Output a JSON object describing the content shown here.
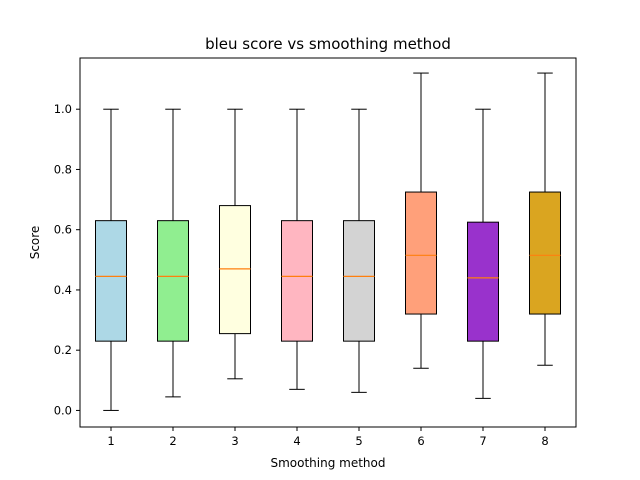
{
  "chart_data": {
    "type": "box",
    "title": "bleu score vs smoothing method",
    "xlabel": "Smoothing method",
    "ylabel": "Score",
    "categories": [
      "1",
      "2",
      "3",
      "4",
      "5",
      "6",
      "7",
      "8"
    ],
    "ylim": [
      -0.055,
      1.17
    ],
    "yticks": [
      0.0,
      0.2,
      0.4,
      0.6,
      0.8,
      1.0
    ],
    "ytick_labels": [
      "0.0",
      "0.2",
      "0.4",
      "0.6",
      "0.8",
      "1.0"
    ],
    "grid": false,
    "legend": "none",
    "median_color": "#ff7f0e",
    "boxes": [
      {
        "category": "1",
        "whisker_low": 0.0,
        "q1": 0.23,
        "median": 0.445,
        "q3": 0.63,
        "whisker_high": 1.0,
        "color": "#add8e6"
      },
      {
        "category": "2",
        "whisker_low": 0.045,
        "q1": 0.23,
        "median": 0.445,
        "q3": 0.63,
        "whisker_high": 1.0,
        "color": "#90ee90"
      },
      {
        "category": "3",
        "whisker_low": 0.105,
        "q1": 0.255,
        "median": 0.47,
        "q3": 0.68,
        "whisker_high": 1.0,
        "color": "#ffffe0"
      },
      {
        "category": "4",
        "whisker_low": 0.07,
        "q1": 0.23,
        "median": 0.445,
        "q3": 0.63,
        "whisker_high": 1.0,
        "color": "#ffb6c1"
      },
      {
        "category": "5",
        "whisker_low": 0.06,
        "q1": 0.23,
        "median": 0.445,
        "q3": 0.63,
        "whisker_high": 1.0,
        "color": "#d3d3d3"
      },
      {
        "category": "6",
        "whisker_low": 0.14,
        "q1": 0.32,
        "median": 0.515,
        "q3": 0.725,
        "whisker_high": 1.12,
        "color": "#ffa07a"
      },
      {
        "category": "7",
        "whisker_low": 0.04,
        "q1": 0.23,
        "median": 0.44,
        "q3": 0.625,
        "whisker_high": 1.0,
        "color": "#9932cc"
      },
      {
        "category": "8",
        "whisker_low": 0.15,
        "q1": 0.32,
        "median": 0.515,
        "q3": 0.725,
        "whisker_high": 1.12,
        "color": "#daa520"
      }
    ]
  }
}
